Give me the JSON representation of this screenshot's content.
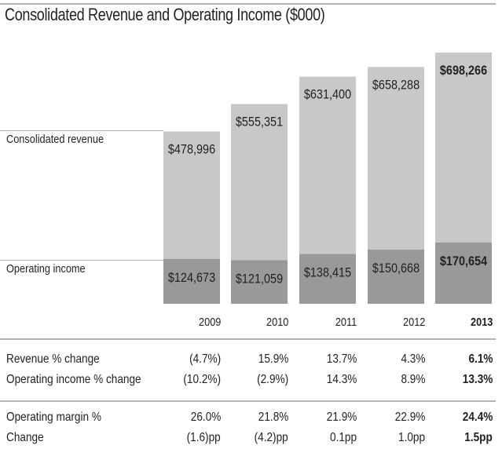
{
  "chart_data": {
    "type": "bar",
    "title": "Consolidated Revenue and Operating Income ($000)",
    "categories": [
      "2009",
      "2010",
      "2011",
      "2012",
      "2013"
    ],
    "highlight_category": "2013",
    "series": [
      {
        "name": "Consolidated revenue",
        "values": [
          478996,
          555351,
          631400,
          658288,
          698266
        ],
        "labels": [
          "$478,996",
          "$555,351",
          "$631,400",
          "$658,288",
          "$698,266"
        ],
        "color": "#c8c8c8"
      },
      {
        "name": "Operating income",
        "values": [
          124673,
          121059,
          138415,
          150668,
          170654
        ],
        "labels": [
          "$124,673",
          "$121,059",
          "$138,415",
          "$150,668",
          "$170,654"
        ],
        "color": "#999999"
      }
    ],
    "ylim": [
      0,
      698266
    ],
    "grid": false
  },
  "table": {
    "rows": [
      {
        "label": "Revenue % change",
        "values": [
          "(4.7%)",
          "15.9%",
          "13.7%",
          "4.3%",
          "6.1%"
        ]
      },
      {
        "label": "Operating income % change",
        "values": [
          "(10.2%)",
          "(2.9%)",
          "14.3%",
          "8.9%",
          "13.3%"
        ]
      },
      {
        "label": "Operating margin %",
        "values": [
          "26.0%",
          "21.8%",
          "21.9%",
          "22.9%",
          "24.4%"
        ]
      },
      {
        "label": "Change",
        "values": [
          "(1.6)pp",
          "(4.2)pp",
          "0.1pp",
          "1.0pp",
          "1.5pp"
        ]
      }
    ]
  }
}
